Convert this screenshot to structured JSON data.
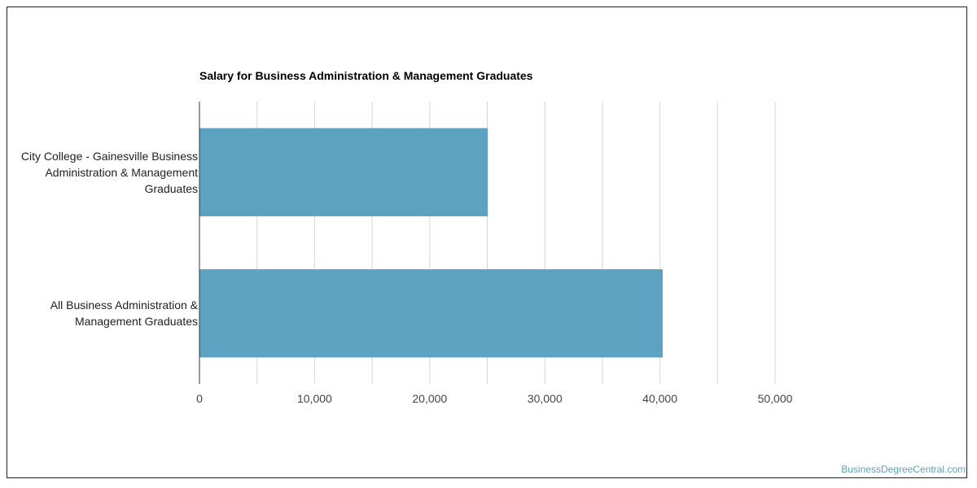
{
  "chart_data": {
    "type": "bar",
    "orientation": "horizontal",
    "title": "Salary for Business Administration & Management Graduates",
    "categories": [
      "City College - Gainesville Business\nAdministration & Management\nGraduates",
      "All Business Administration &\nManagement Graduates"
    ],
    "values": [
      25000,
      40200
    ],
    "xlim": [
      0,
      50000
    ],
    "xticks": [
      0,
      10000,
      20000,
      30000,
      40000,
      50000
    ],
    "xtick_labels": [
      "0",
      "10,000",
      "20,000",
      "30,000",
      "40,000",
      "50,000"
    ],
    "minor_gridlines_every": 5000,
    "bar_color": "#5ba3c1",
    "grid": true,
    "legend": "none"
  },
  "watermark": "BusinessDegreeCentral.com"
}
